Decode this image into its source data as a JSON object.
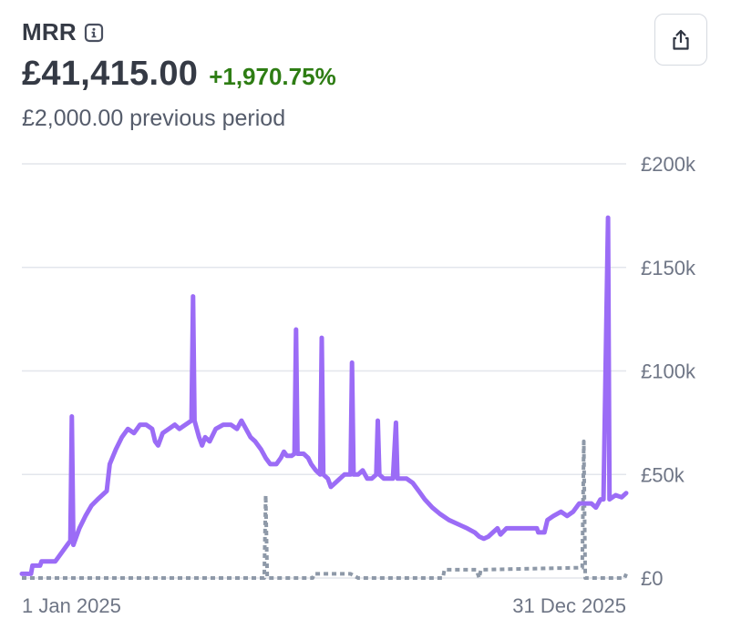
{
  "header": {
    "title": "MRR",
    "value": "£41,415.00",
    "change": "+1,970.75%",
    "previous": "£2,000.00 previous period",
    "info_icon": "info-icon",
    "share_icon": "share-icon"
  },
  "chart_data": {
    "type": "line",
    "title": "",
    "xlabel": "",
    "ylabel": "",
    "ylim": [
      0,
      200000
    ],
    "y_ticks": [
      {
        "value": 0,
        "label": "£0"
      },
      {
        "value": 50000,
        "label": "£50k"
      },
      {
        "value": 100000,
        "label": "£100k"
      },
      {
        "value": 150000,
        "label": "£150k"
      },
      {
        "value": 200000,
        "label": "£200k"
      }
    ],
    "x_ticks": [
      "1 Jan 2025",
      "31 Dec 2025"
    ],
    "grid": true,
    "colors": {
      "current": "#9b6cf6",
      "previous": "#8e99a8",
      "grid": "#e3e6ec"
    },
    "series": [
      {
        "key": "current",
        "style": "solid",
        "values": [
          [
            0,
            2000
          ],
          [
            6,
            2000
          ],
          [
            7,
            6000
          ],
          [
            12,
            6000
          ],
          [
            13,
            8000
          ],
          [
            22,
            8000
          ],
          [
            24,
            10000
          ],
          [
            30,
            16000
          ],
          [
            32,
            18000
          ],
          [
            33,
            78000
          ],
          [
            34,
            16000
          ],
          [
            38,
            24000
          ],
          [
            42,
            30000
          ],
          [
            46,
            35000
          ],
          [
            50,
            38000
          ],
          [
            56,
            42000
          ],
          [
            58,
            55000
          ],
          [
            62,
            62000
          ],
          [
            66,
            68000
          ],
          [
            70,
            72000
          ],
          [
            74,
            70000
          ],
          [
            78,
            74000
          ],
          [
            82,
            74000
          ],
          [
            86,
            72000
          ],
          [
            88,
            66000
          ],
          [
            90,
            64000
          ],
          [
            93,
            70000
          ],
          [
            97,
            72000
          ],
          [
            101,
            74000
          ],
          [
            104,
            72000
          ],
          [
            108,
            74000
          ],
          [
            112,
            76000
          ],
          [
            113,
            136000
          ],
          [
            114,
            76000
          ],
          [
            117,
            68000
          ],
          [
            119,
            64000
          ],
          [
            121,
            68000
          ],
          [
            124,
            66000
          ],
          [
            128,
            72000
          ],
          [
            133,
            74000
          ],
          [
            138,
            74000
          ],
          [
            142,
            72000
          ],
          [
            145,
            76000
          ],
          [
            148,
            72000
          ],
          [
            151,
            68000
          ],
          [
            154,
            66000
          ],
          [
            158,
            62000
          ],
          [
            161,
            58000
          ],
          [
            164,
            55000
          ],
          [
            168,
            55000
          ],
          [
            171,
            58000
          ],
          [
            173,
            61000
          ],
          [
            175,
            59000
          ],
          [
            178,
            59000
          ],
          [
            180,
            60000
          ],
          [
            181,
            120000
          ],
          [
            182,
            60000
          ],
          [
            186,
            60000
          ],
          [
            189,
            58000
          ],
          [
            191,
            55000
          ],
          [
            194,
            52000
          ],
          [
            197,
            50000
          ],
          [
            198,
            116000
          ],
          [
            199,
            50000
          ],
          [
            202,
            48000
          ],
          [
            204,
            44000
          ],
          [
            207,
            46000
          ],
          [
            210,
            48000
          ],
          [
            213,
            50000
          ],
          [
            217,
            50000
          ],
          [
            218,
            104000
          ],
          [
            219,
            50000
          ],
          [
            222,
            50000
          ],
          [
            225,
            52000
          ],
          [
            228,
            48000
          ],
          [
            231,
            48000
          ],
          [
            234,
            50000
          ],
          [
            235,
            76000
          ],
          [
            236,
            50000
          ],
          [
            239,
            48000
          ],
          [
            245,
            48000
          ],
          [
            247,
            75000
          ],
          [
            248,
            48000
          ],
          [
            254,
            48000
          ],
          [
            258,
            46000
          ],
          [
            262,
            42000
          ],
          [
            266,
            38000
          ],
          [
            271,
            34000
          ],
          [
            276,
            31000
          ],
          [
            282,
            28000
          ],
          [
            288,
            26000
          ],
          [
            294,
            24000
          ],
          [
            299,
            22000
          ],
          [
            302,
            20000
          ],
          [
            305,
            19000
          ],
          [
            308,
            20000
          ],
          [
            311,
            22000
          ],
          [
            314,
            24000
          ],
          [
            316,
            21000
          ],
          [
            320,
            24000
          ],
          [
            330,
            24000
          ],
          [
            340,
            24000
          ],
          [
            341,
            22000
          ],
          [
            345,
            22000
          ],
          [
            347,
            28000
          ],
          [
            351,
            30000
          ],
          [
            356,
            32000
          ],
          [
            360,
            30000
          ],
          [
            364,
            32000
          ],
          [
            368,
            36000
          ],
          [
            376,
            36000
          ],
          [
            379,
            34000
          ],
          [
            382,
            38000
          ],
          [
            384,
            38000
          ],
          [
            387,
            174000
          ],
          [
            388,
            38000
          ],
          [
            392,
            40000
          ],
          [
            396,
            39000
          ],
          [
            399,
            41000
          ]
        ]
      },
      {
        "key": "previous",
        "style": "dotted",
        "values": [
          [
            0,
            0
          ],
          [
            160,
            0
          ],
          [
            161,
            40000
          ],
          [
            162,
            0
          ],
          [
            192,
            0
          ],
          [
            193,
            2000
          ],
          [
            217,
            2000
          ],
          [
            222,
            0
          ],
          [
            278,
            0
          ],
          [
            279,
            4000
          ],
          [
            300,
            4000
          ],
          [
            302,
            0
          ],
          [
            303,
            4000
          ],
          [
            370,
            5000
          ],
          [
            371,
            66000
          ],
          [
            372,
            0
          ],
          [
            398,
            0
          ],
          [
            399,
            2000
          ]
        ]
      }
    ]
  }
}
